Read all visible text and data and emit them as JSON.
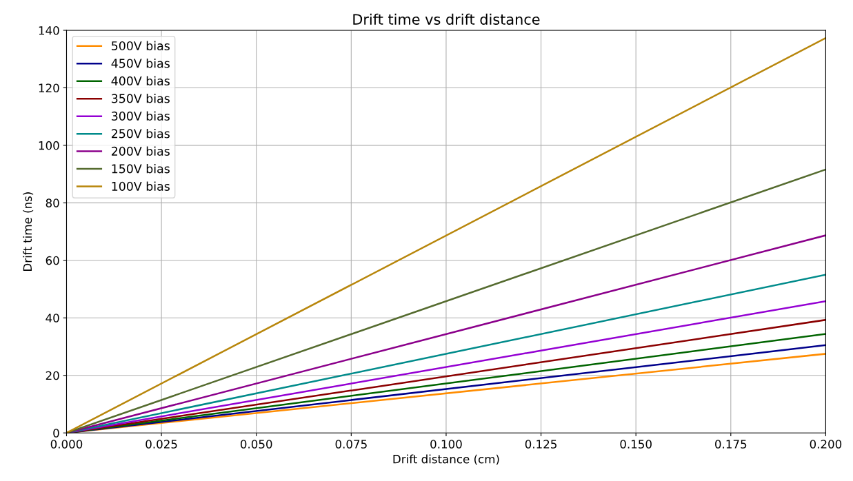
{
  "chart_data": {
    "type": "line",
    "title": "Drift time vs drift distance",
    "xlabel": "Drift distance (cm)",
    "ylabel": "Drift time (ns)",
    "x": [
      0,
      0.2
    ],
    "series": [
      {
        "name": "500V bias",
        "color": "#ff8c00",
        "values": [
          0,
          27.5
        ]
      },
      {
        "name": "450V bias",
        "color": "#00008b",
        "values": [
          0,
          30.5
        ]
      },
      {
        "name": "400V bias",
        "color": "#006400",
        "values": [
          0,
          34.4
        ]
      },
      {
        "name": "350V bias",
        "color": "#8b0000",
        "values": [
          0,
          39.3
        ]
      },
      {
        "name": "300V bias",
        "color": "#9400d3",
        "values": [
          0,
          45.8
        ]
      },
      {
        "name": "250V bias",
        "color": "#008b8b",
        "values": [
          0,
          55.0
        ]
      },
      {
        "name": "200V bias",
        "color": "#8b008b",
        "values": [
          0,
          68.7
        ]
      },
      {
        "name": "150V bias",
        "color": "#556b2f",
        "values": [
          0,
          91.6
        ]
      },
      {
        "name": "100V bias",
        "color": "#b8860b",
        "values": [
          0,
          137.3
        ]
      }
    ],
    "xlim": [
      0,
      0.2
    ],
    "ylim": [
      0,
      140
    ],
    "xticks": [
      {
        "value": 0,
        "label": "0.000"
      },
      {
        "value": 0.025,
        "label": "0.025"
      },
      {
        "value": 0.05,
        "label": "0.050"
      },
      {
        "value": 0.075,
        "label": "0.075"
      },
      {
        "value": 0.1,
        "label": "0.100"
      },
      {
        "value": 0.125,
        "label": "0.125"
      },
      {
        "value": 0.15,
        "label": "0.150"
      },
      {
        "value": 0.175,
        "label": "0.175"
      },
      {
        "value": 0.2,
        "label": "0.200"
      }
    ],
    "yticks": [
      0,
      20,
      40,
      60,
      80,
      100,
      120,
      140
    ],
    "grid": true,
    "legend": "top left",
    "marker": "none",
    "line_style": "solid"
  }
}
